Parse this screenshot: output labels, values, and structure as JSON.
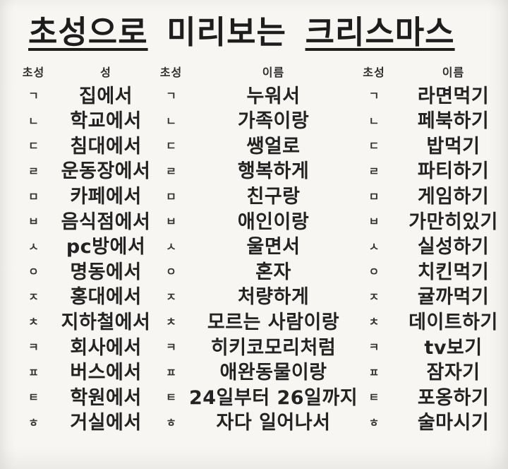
{
  "page": {
    "background_color": "#f6f5f2",
    "text_color": "#242424"
  },
  "title": {
    "full": "초성으로 미리보는 크리스마스",
    "parts": [
      {
        "text": "초성으로",
        "underlined": true
      },
      {
        "text": "미리보는",
        "underlined": false
      },
      {
        "text": "크리스마스",
        "underlined": true
      }
    ]
  },
  "table": {
    "headers": {
      "h1": "초성",
      "h2": "성",
      "h3": "초성",
      "h4": "이름",
      "h5": "초성",
      "h6": "이름"
    },
    "rows": [
      {
        "c1": "ㄱ",
        "place": "집에서",
        "c2": "ㄱ",
        "middle": "누워서",
        "c3": "ㄱ",
        "activity": "라면먹기"
      },
      {
        "c1": "ㄴ",
        "place": "학교에서",
        "c2": "ㄴ",
        "middle": "가족이랑",
        "c3": "ㄴ",
        "activity": "페북하기"
      },
      {
        "c1": "ㄷ",
        "place": "침대에서",
        "c2": "ㄷ",
        "middle": "쌩얼로",
        "c3": "ㄷ",
        "activity": "밥먹기"
      },
      {
        "c1": "ㄹ",
        "place": "운동장에서",
        "c2": "ㄹ",
        "middle": "행복하게",
        "c3": "ㄹ",
        "activity": "파티하기"
      },
      {
        "c1": "ㅁ",
        "place": "카페에서",
        "c2": "ㅁ",
        "middle": "친구랑",
        "c3": "ㅁ",
        "activity": "게임하기"
      },
      {
        "c1": "ㅂ",
        "place": "음식점에서",
        "c2": "ㅂ",
        "middle": "애인이랑",
        "c3": "ㅂ",
        "activity": "가만히있기"
      },
      {
        "c1": "ㅅ",
        "place": "pc방에서",
        "c2": "ㅅ",
        "middle": "울면서",
        "c3": "ㅅ",
        "activity": "실성하기"
      },
      {
        "c1": "ㅇ",
        "place": "명동에서",
        "c2": "ㅇ",
        "middle": "혼자",
        "c3": "ㅇ",
        "activity": "치킨먹기"
      },
      {
        "c1": "ㅈ",
        "place": "홍대에서",
        "c2": "ㅈ",
        "middle": "처량하게",
        "c3": "ㅈ",
        "activity": "귤까먹기"
      },
      {
        "c1": "ㅊ",
        "place": "지하철에서",
        "c2": "ㅊ",
        "middle": "모르는 사람이랑",
        "c3": "ㅊ",
        "activity": "데이트하기"
      },
      {
        "c1": "ㅋ",
        "place": "회사에서",
        "c2": "ㅋ",
        "middle": "히키코모리처럼",
        "c3": "ㅋ",
        "activity": "tv보기"
      },
      {
        "c1": "ㅍ",
        "place": "버스에서",
        "c2": "ㅍ",
        "middle": "애완동물이랑",
        "c3": "ㅍ",
        "activity": "잠자기"
      },
      {
        "c1": "ㅌ",
        "place": "학원에서",
        "c2": "ㅌ",
        "middle": "24일부터 26일까지",
        "c3": "ㅌ",
        "activity": "포옹하기"
      },
      {
        "c1": "ㅎ",
        "place": "거실에서",
        "c2": "ㅎ",
        "middle": "자다 일어나서",
        "c3": "ㅎ",
        "activity": "술마시기"
      }
    ]
  }
}
